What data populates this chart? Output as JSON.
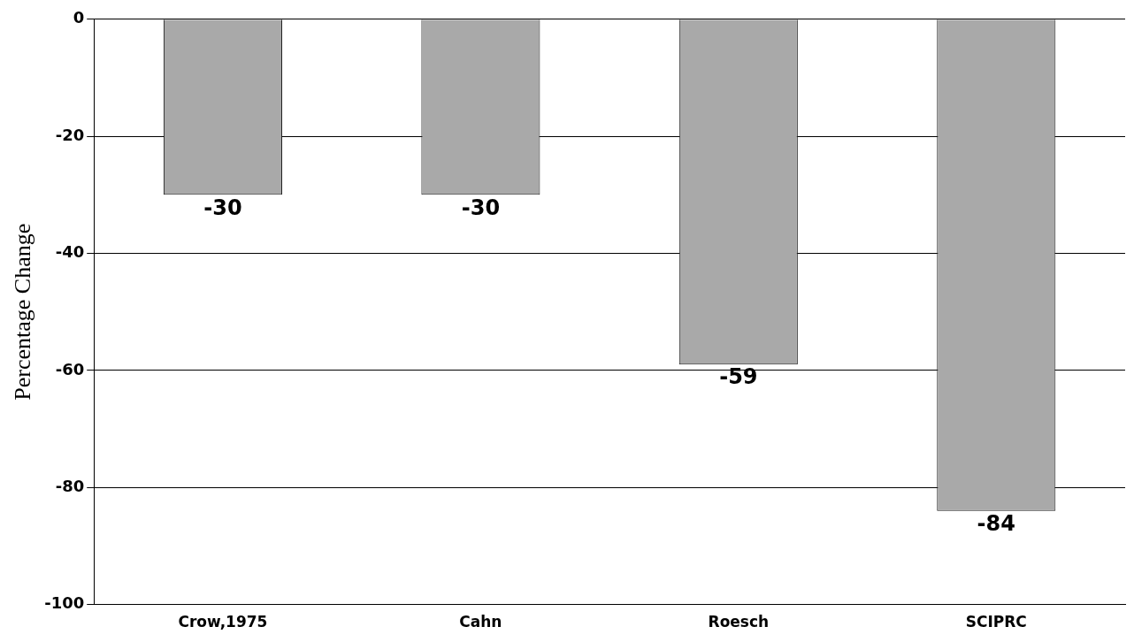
{
  "chart_data": {
    "type": "bar",
    "ylabel": "Percentage Change",
    "categories": [
      "Crow,1975",
      "Cahn",
      "Roesch",
      "SCIPRC"
    ],
    "values": [
      -30,
      -30,
      -59,
      -84
    ],
    "color": "#a9a9a9",
    "ylim": [
      -100,
      0
    ],
    "yticks": [
      0,
      -20,
      -40,
      -60,
      -80,
      -100
    ],
    "grid": "y",
    "legend": false,
    "data_labels": true
  }
}
